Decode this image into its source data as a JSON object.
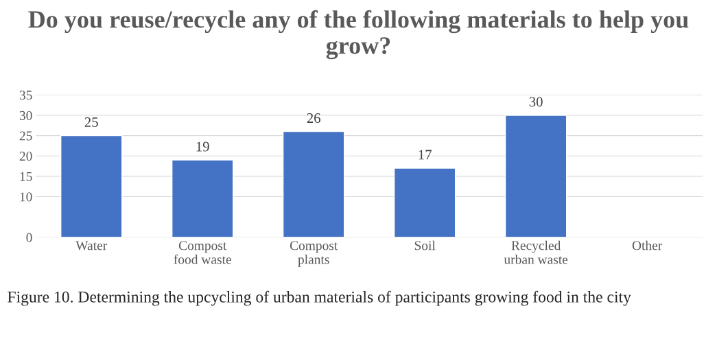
{
  "chart_data": {
    "type": "bar",
    "title": "Do you reuse/recycle any of the following materials to help you grow?",
    "categories": [
      "Water",
      "Compost food waste",
      "Compost plants",
      "Soil",
      "Recycled urban waste",
      "Other"
    ],
    "values": [
      25,
      19,
      26,
      17,
      30,
      null
    ],
    "value_labels": [
      "25",
      "19",
      "26",
      "17",
      "30",
      null
    ],
    "color": "#4472c4",
    "ylim": [
      0,
      35
    ],
    "yticks": [
      0,
      10,
      15,
      20,
      25,
      30,
      35
    ],
    "grid": "y",
    "annotations": [
      "Figure 10. Determining the upcycling of urban materials of participants growing food in the city"
    ]
  }
}
